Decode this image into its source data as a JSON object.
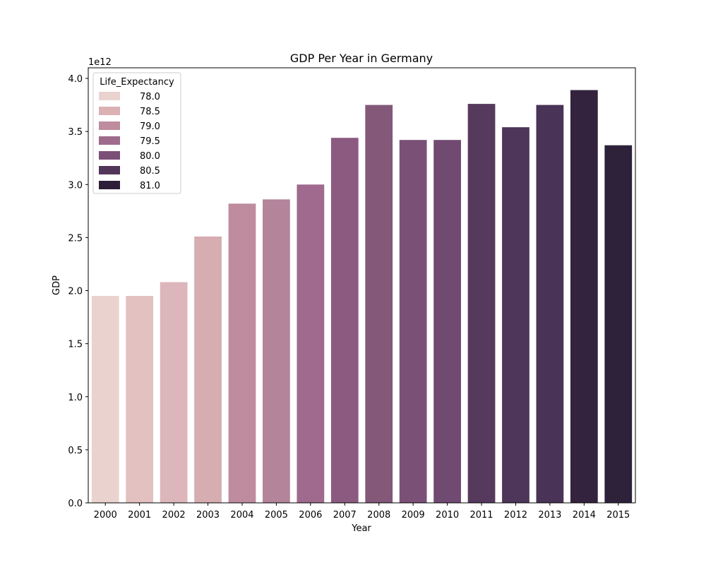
{
  "chart_data": {
    "type": "bar",
    "title": "GDP Per Year in Germany",
    "xlabel": "Year",
    "ylabel": "GDP",
    "y_scale_label": "1e12",
    "categories": [
      "2000",
      "2001",
      "2002",
      "2003",
      "2004",
      "2005",
      "2006",
      "2007",
      "2008",
      "2009",
      "2010",
      "2011",
      "2012",
      "2013",
      "2014",
      "2015"
    ],
    "values": [
      1950000000000.0,
      1950000000000.0,
      2080000000000.0,
      2510000000000.0,
      2820000000000.0,
      2860000000000.0,
      3000000000000.0,
      3440000000000.0,
      3750000000000.0,
      3420000000000.0,
      3420000000000.0,
      3760000000000.0,
      3540000000000.0,
      3750000000000.0,
      3890000000000.0,
      3370000000000.0
    ],
    "hue": [
      78.0,
      78.5,
      78.5,
      78.5,
      79.0,
      79.0,
      79.5,
      79.5,
      80.0,
      80.0,
      80.0,
      80.5,
      80.5,
      80.5,
      81.0,
      81.0
    ],
    "ylim": [
      0,
      4100000000000.0
    ],
    "y_ticks": [
      0,
      500000000000.0,
      1000000000000.0,
      1500000000000.0,
      2000000000000.0,
      2500000000000.0,
      3000000000000.0,
      3500000000000.0,
      4000000000000.0
    ],
    "y_tick_labels": [
      "0.0",
      "0.5",
      "1.0",
      "1.5",
      "2.0",
      "2.5",
      "3.0",
      "3.5",
      "4.0"
    ],
    "grid": false,
    "legend": {
      "title": "Life_Expectancy",
      "placement": "top-left",
      "entries": [
        {
          "label": "78.0",
          "value": 78.0,
          "color": "#ead3ce"
        },
        {
          "label": "78.5",
          "value": 78.5,
          "color": "#dcb1b4"
        },
        {
          "label": "79.0",
          "value": 79.0,
          "color": "#be8c9e"
        },
        {
          "label": "79.5",
          "value": 79.5,
          "color": "#9f6b8d"
        },
        {
          "label": "80.0",
          "value": 80.0,
          "color": "#7b5077"
        },
        {
          "label": "80.5",
          "value": 80.5,
          "color": "#523659"
        },
        {
          "label": "81.0",
          "value": 81.0,
          "color": "#2d1e38"
        }
      ]
    },
    "bar_colors": [
      "#ead3ce",
      "#e2c1c0",
      "#dcb6bb",
      "#d6adb1",
      "#bf8c9f",
      "#b4849b",
      "#9f6a8d",
      "#8c5a80",
      "#835879",
      "#7b5077",
      "#714a71",
      "#563a5e",
      "#4d365a",
      "#493356",
      "#33233e",
      "#2d2239"
    ]
  }
}
